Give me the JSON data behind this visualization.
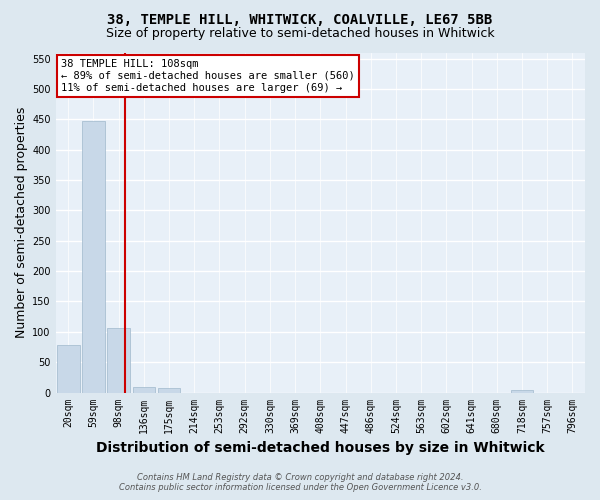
{
  "title1": "38, TEMPLE HILL, WHITWICK, COALVILLE, LE67 5BB",
  "title2": "Size of property relative to semi-detached houses in Whitwick",
  "xlabel": "Distribution of semi-detached houses by size in Whitwick",
  "ylabel": "Number of semi-detached properties",
  "bin_labels": [
    "20sqm",
    "59sqm",
    "98sqm",
    "136sqm",
    "175sqm",
    "214sqm",
    "253sqm",
    "292sqm",
    "330sqm",
    "369sqm",
    "408sqm",
    "447sqm",
    "486sqm",
    "524sqm",
    "563sqm",
    "602sqm",
    "641sqm",
    "680sqm",
    "718sqm",
    "757sqm",
    "796sqm"
  ],
  "bar_heights": [
    78,
    447,
    107,
    9,
    8,
    0,
    0,
    0,
    0,
    0,
    0,
    0,
    0,
    0,
    0,
    0,
    0,
    0,
    5,
    0,
    0
  ],
  "bar_color": "#c8d8e8",
  "bar_edge_color": "#a0b8cc",
  "property_size": "108sqm",
  "pct_smaller": 89,
  "count_smaller": 560,
  "pct_larger": 11,
  "count_larger": 69,
  "annotation_text_line1": "38 TEMPLE HILL: 108sqm",
  "annotation_text_line2": "← 89% of semi-detached houses are smaller (560)",
  "annotation_text_line3": "11% of semi-detached houses are larger (69) →",
  "annotation_box_color": "#ffffff",
  "annotation_box_edge": "#cc0000",
  "vline_color": "#cc0000",
  "ylim": [
    0,
    560
  ],
  "yticks": [
    0,
    50,
    100,
    150,
    200,
    250,
    300,
    350,
    400,
    450,
    500,
    550
  ],
  "footer_line1": "Contains HM Land Registry data © Crown copyright and database right 2024.",
  "footer_line2": "Contains public sector information licensed under the Open Government Licence v3.0.",
  "bg_color": "#dde8f0",
  "plot_bg_color": "#e8f0f8",
  "grid_color": "#ffffff",
  "title_fontsize": 10,
  "subtitle_fontsize": 9,
  "axis_label_fontsize": 9,
  "tick_fontsize": 7
}
